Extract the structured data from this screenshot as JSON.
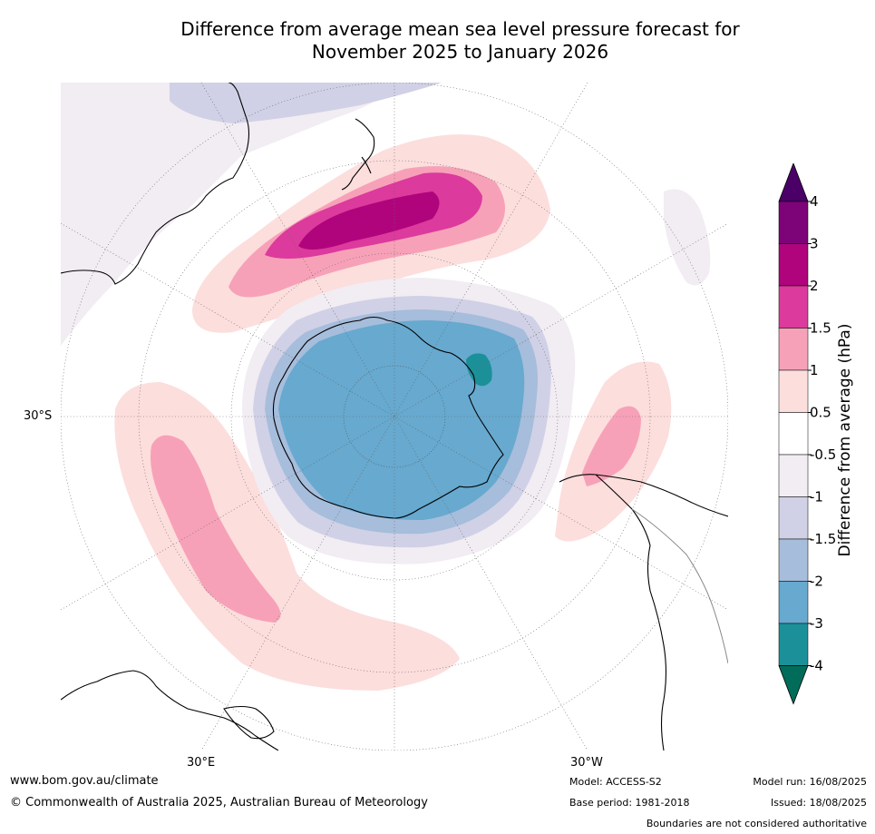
{
  "title_line1": "Difference from average mean sea level pressure forecast for",
  "title_line2": "November 2025 to January 2026",
  "map": {
    "projection": "south-polar-stereographic",
    "lat_label": "30°S",
    "lon_labels": [
      "30°E",
      "30°W"
    ]
  },
  "colorbar": {
    "title": "Difference from average (hPa)",
    "ticks": [
      "4",
      "3",
      "2",
      "1.5",
      "1",
      "0.5",
      "-0.5",
      "-1",
      "-1.5",
      "-2",
      "-3",
      "-4"
    ],
    "colors": [
      "#4b0068",
      "#7c0378",
      "#b0047d",
      "#dc3a9c",
      "#f7a1b8",
      "#fcdedd",
      "#ffffff",
      "#f2ecf3",
      "#d0d1e6",
      "#a6bddb",
      "#67a9cf",
      "#1c9099",
      "#016c59"
    ]
  },
  "footer": {
    "url": "www.bom.gov.au/climate",
    "copyright": "© Commonwealth of Australia 2025, Australian Bureau of Meteorology",
    "model": "Model: ACCESS-S2",
    "base_period": "Base period: 1981-2018",
    "model_run": "Model run: 16/08/2025",
    "issued": "Issued: 18/08/2025",
    "boundaries": "Boundaries are not considered authoritative"
  }
}
